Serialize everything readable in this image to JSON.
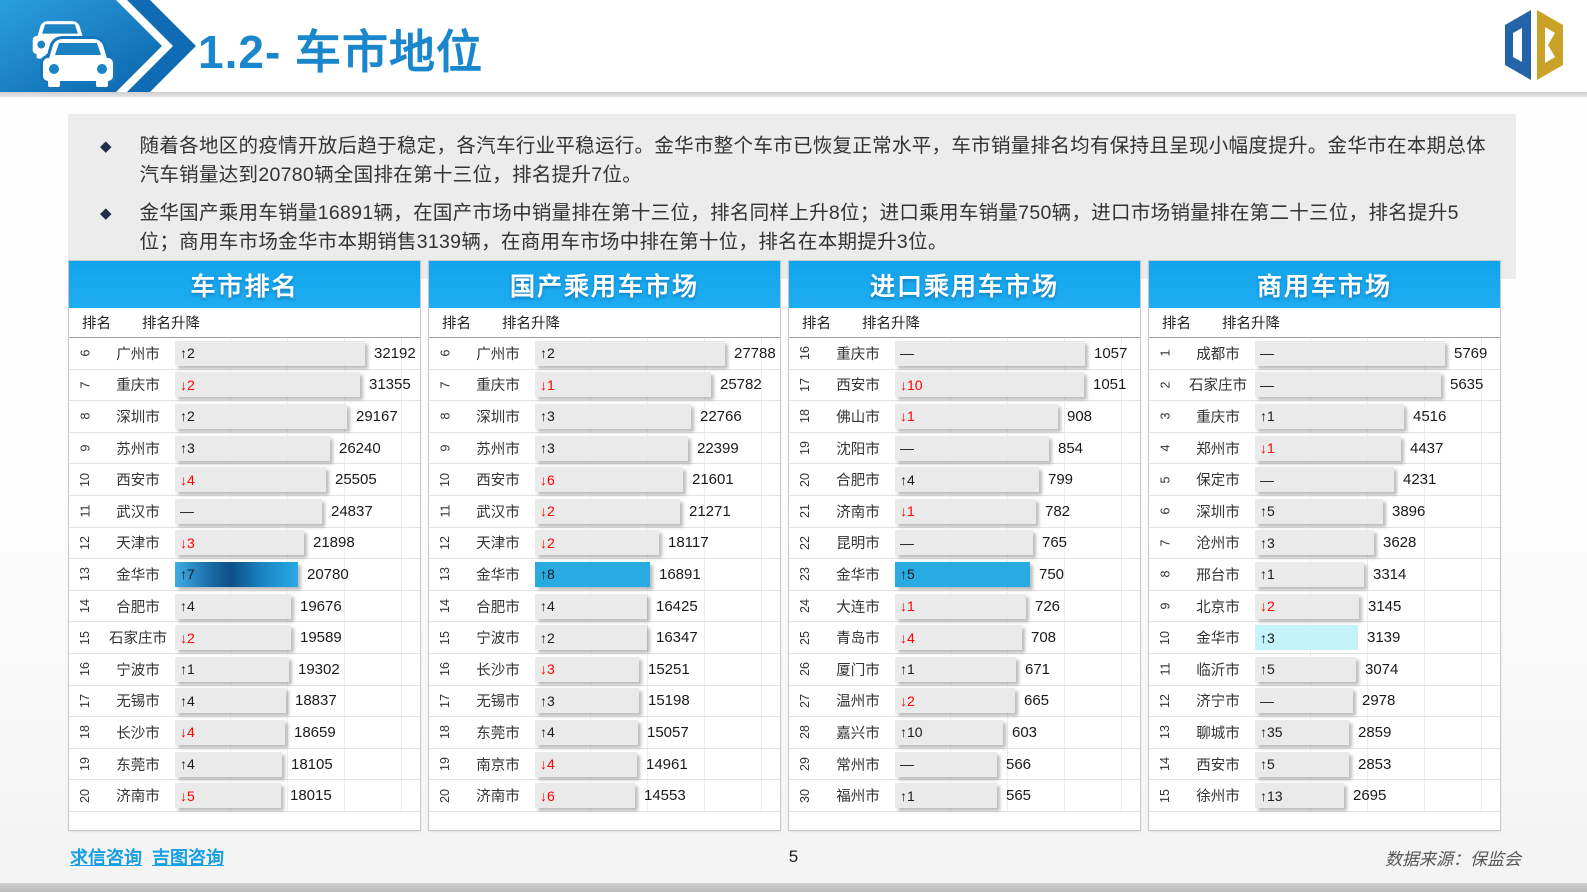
{
  "header": {
    "title": "1.2- 车市地位"
  },
  "summary": {
    "bullets": [
      "随着各地区的疫情开放后趋于稳定，各汽车行业平稳运行。金华市整个车市已恢复正常水平，车市销量排名均有保持且呈现小幅度提升。金华市在本期总体汽车销量达到20780辆全国排在第十三位，排名提升7位。",
      "金华国产乘用车销量16891辆，在国产市场中销量排在第十三位，排名同样上升8位；进口乘用车销量750辆，进口市场销量排在第二十三位，排名提升5位；商用车市场金华市本期销售3139辆，在商用车市场中排在第十位，排名在本期提升3位。"
    ]
  },
  "tables": [
    {
      "title": "车市排名",
      "col_rank": "排名",
      "col_change": "排名升降",
      "rows": [
        {
          "rank": "6",
          "city": "广州市",
          "change": "↑2",
          "dir": "up",
          "value": 32192
        },
        {
          "rank": "7",
          "city": "重庆市",
          "change": "↓2",
          "dir": "down",
          "value": 31355
        },
        {
          "rank": "8",
          "city": "深圳市",
          "change": "↑2",
          "dir": "up",
          "value": 29167
        },
        {
          "rank": "9",
          "city": "苏州市",
          "change": "↑3",
          "dir": "up",
          "value": 26240
        },
        {
          "rank": "10",
          "city": "西安市",
          "change": "↓4",
          "dir": "down",
          "value": 25505
        },
        {
          "rank": "11",
          "city": "武汉市",
          "change": "—",
          "dir": "flat",
          "value": 24837
        },
        {
          "rank": "12",
          "city": "天津市",
          "change": "↓3",
          "dir": "down",
          "value": 21898
        },
        {
          "rank": "13",
          "city": "金华市",
          "change": "↑7",
          "dir": "up",
          "value": 20780,
          "highlight": "gradient"
        },
        {
          "rank": "14",
          "city": "合肥市",
          "change": "↑4",
          "dir": "up",
          "value": 19676
        },
        {
          "rank": "15",
          "city": "石家庄市",
          "change": "↓2",
          "dir": "down",
          "value": 19589
        },
        {
          "rank": "16",
          "city": "宁波市",
          "change": "↑1",
          "dir": "up",
          "value": 19302
        },
        {
          "rank": "17",
          "city": "无锡市",
          "change": "↑4",
          "dir": "up",
          "value": 18837
        },
        {
          "rank": "18",
          "city": "长沙市",
          "change": "↓4",
          "dir": "down",
          "value": 18659
        },
        {
          "rank": "19",
          "city": "东莞市",
          "change": "↑4",
          "dir": "up",
          "value": 18105
        },
        {
          "rank": "20",
          "city": "济南市",
          "change": "↓5",
          "dir": "down",
          "value": 18015
        }
      ]
    },
    {
      "title": "国产乘用车市场",
      "col_rank": "排名",
      "col_change": "排名升降",
      "rows": [
        {
          "rank": "6",
          "city": "广州市",
          "change": "↑2",
          "dir": "up",
          "value": 27788
        },
        {
          "rank": "7",
          "city": "重庆市",
          "change": "↓1",
          "dir": "down",
          "value": 25782
        },
        {
          "rank": "8",
          "city": "深圳市",
          "change": "↑3",
          "dir": "up",
          "value": 22766
        },
        {
          "rank": "9",
          "city": "苏州市",
          "change": "↑3",
          "dir": "up",
          "value": 22399
        },
        {
          "rank": "10",
          "city": "西安市",
          "change": "↓6",
          "dir": "down",
          "value": 21601
        },
        {
          "rank": "11",
          "city": "武汉市",
          "change": "↓2",
          "dir": "down",
          "value": 21271
        },
        {
          "rank": "12",
          "city": "天津市",
          "change": "↓2",
          "dir": "down",
          "value": 18117
        },
        {
          "rank": "13",
          "city": "金华市",
          "change": "↑8",
          "dir": "up",
          "value": 16891,
          "highlight": "solid"
        },
        {
          "rank": "14",
          "city": "合肥市",
          "change": "↑4",
          "dir": "up",
          "value": 16425
        },
        {
          "rank": "15",
          "city": "宁波市",
          "change": "↑2",
          "dir": "up",
          "value": 16347
        },
        {
          "rank": "16",
          "city": "长沙市",
          "change": "↓3",
          "dir": "down",
          "value": 15251
        },
        {
          "rank": "17",
          "city": "无锡市",
          "change": "↑3",
          "dir": "up",
          "value": 15198
        },
        {
          "rank": "18",
          "city": "东莞市",
          "change": "↑4",
          "dir": "up",
          "value": 15057
        },
        {
          "rank": "19",
          "city": "南京市",
          "change": "↓4",
          "dir": "down",
          "value": 14961
        },
        {
          "rank": "20",
          "city": "济南市",
          "change": "↓6",
          "dir": "down",
          "value": 14553
        }
      ]
    },
    {
      "title": "进口乘用车市场",
      "col_rank": "排名",
      "col_change": "排名升降",
      "rows": [
        {
          "rank": "16",
          "city": "重庆市",
          "change": "—",
          "dir": "flat",
          "value": 1057
        },
        {
          "rank": "17",
          "city": "西安市",
          "change": "↓10",
          "dir": "down",
          "value": 1051
        },
        {
          "rank": "18",
          "city": "佛山市",
          "change": "↓1",
          "dir": "down",
          "value": 908
        },
        {
          "rank": "19",
          "city": "沈阳市",
          "change": "—",
          "dir": "flat",
          "value": 854
        },
        {
          "rank": "20",
          "city": "合肥市",
          "change": "↑4",
          "dir": "up",
          "value": 799
        },
        {
          "rank": "21",
          "city": "济南市",
          "change": "↓1",
          "dir": "down",
          "value": 782
        },
        {
          "rank": "22",
          "city": "昆明市",
          "change": "—",
          "dir": "flat",
          "value": 765
        },
        {
          "rank": "23",
          "city": "金华市",
          "change": "↑5",
          "dir": "up",
          "value": 750,
          "highlight": "solid"
        },
        {
          "rank": "24",
          "city": "大连市",
          "change": "↓1",
          "dir": "down",
          "value": 726
        },
        {
          "rank": "25",
          "city": "青岛市",
          "change": "↓4",
          "dir": "down",
          "value": 708
        },
        {
          "rank": "26",
          "city": "厦门市",
          "change": "↑1",
          "dir": "up",
          "value": 671
        },
        {
          "rank": "27",
          "city": "温州市",
          "change": "↓2",
          "dir": "down",
          "value": 665
        },
        {
          "rank": "28",
          "city": "嘉兴市",
          "change": "↑10",
          "dir": "up",
          "value": 603
        },
        {
          "rank": "29",
          "city": "常州市",
          "change": "—",
          "dir": "flat",
          "value": 566
        },
        {
          "rank": "30",
          "city": "福州市",
          "change": "↑1",
          "dir": "up",
          "value": 565
        }
      ]
    },
    {
      "title": "商用车市场",
      "col_rank": "排名",
      "col_change": "排名升降",
      "rows": [
        {
          "rank": "1",
          "city": "成都市",
          "change": "—",
          "dir": "flat",
          "value": 5769
        },
        {
          "rank": "2",
          "city": "石家庄市",
          "change": "—",
          "dir": "flat",
          "value": 5635
        },
        {
          "rank": "3",
          "city": "重庆市",
          "change": "↑1",
          "dir": "up",
          "value": 4516
        },
        {
          "rank": "4",
          "city": "郑州市",
          "change": "↓1",
          "dir": "down",
          "value": 4437
        },
        {
          "rank": "5",
          "city": "保定市",
          "change": "—",
          "dir": "flat",
          "value": 4231
        },
        {
          "rank": "6",
          "city": "深圳市",
          "change": "↑5",
          "dir": "up",
          "value": 3896
        },
        {
          "rank": "7",
          "city": "沧州市",
          "change": "↑3",
          "dir": "up",
          "value": 3628
        },
        {
          "rank": "8",
          "city": "邢台市",
          "change": "↑1",
          "dir": "up",
          "value": 3314
        },
        {
          "rank": "9",
          "city": "北京市",
          "change": "↓2",
          "dir": "down",
          "value": 3145
        },
        {
          "rank": "10",
          "city": "金华市",
          "change": "↑3",
          "dir": "up",
          "value": 3139,
          "highlight": "cyan"
        },
        {
          "rank": "11",
          "city": "临沂市",
          "change": "↑5",
          "dir": "up",
          "value": 3074
        },
        {
          "rank": "12",
          "city": "济宁市",
          "change": "—",
          "dir": "flat",
          "value": 2978
        },
        {
          "rank": "13",
          "city": "聊城市",
          "change": "↑35",
          "dir": "up",
          "value": 2859
        },
        {
          "rank": "14",
          "city": "西安市",
          "change": "↑5",
          "dir": "up",
          "value": 2853
        },
        {
          "rank": "15",
          "city": "徐州市",
          "change": "↑13",
          "dir": "up",
          "value": 2695
        }
      ]
    }
  ],
  "footer": {
    "links": [
      "求信咨询",
      "吉图咨询"
    ],
    "page_number": "5",
    "source": "数据来源：保监会"
  },
  "colors": {
    "title_blue": "#1A86CB",
    "table_header_blue": "#14A6EC",
    "highlight_blue": "#29ABE2",
    "highlight_cyan": "#C4F3F9",
    "down_red": "#FE0000",
    "bar_gray": "#EAEAEA",
    "summary_bg": "#ECECEC"
  }
}
